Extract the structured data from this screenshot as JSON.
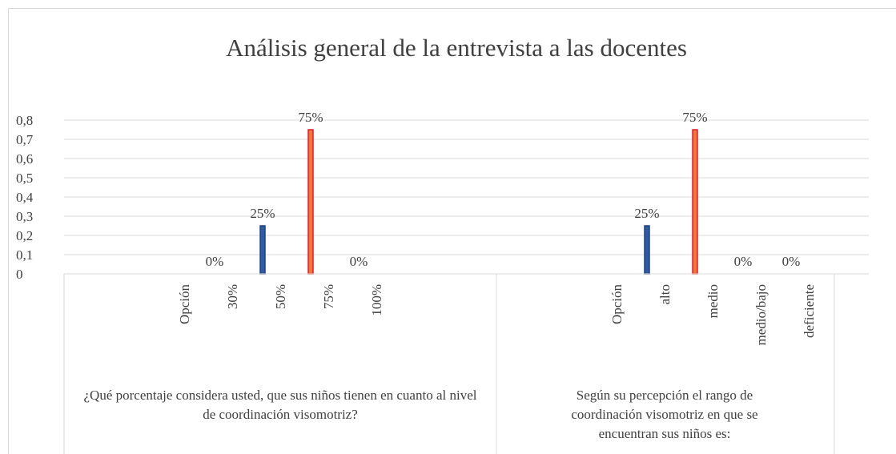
{
  "chart_data": {
    "type": "bar",
    "title": "Análisis general de la entrevista a las docentes",
    "ylim": [
      0,
      0.8
    ],
    "yticks": [
      0,
      {
        "value": 0.1,
        "label": "0,1"
      },
      {
        "value": 0.2,
        "label": "0,2"
      },
      {
        "value": 0.3,
        "label": "0,3"
      },
      {
        "value": 0.4,
        "label": "0,4"
      },
      {
        "value": 0.5,
        "label": "0,5"
      },
      {
        "value": 0.6,
        "label": "0,6"
      },
      {
        "value": 0.7,
        "label": "0,7"
      },
      {
        "value": 0.8,
        "label": "0,8"
      }
    ],
    "grid": true,
    "groups": [
      {
        "label": "¿Qué porcentaje considera usted, que sus niños tienen en cuanto al nivel de coordinación visomotriz?",
        "categories": [
          null,
          null,
          "Opción",
          "30%",
          "50%",
          "75%",
          "100%",
          null,
          null
        ],
        "values": [
          null,
          null,
          null,
          0,
          0.25,
          0.75,
          0,
          null,
          null
        ],
        "value_labels": [
          null,
          null,
          null,
          "0%",
          "25%",
          "75%",
          "0%",
          null,
          null
        ],
        "colors": [
          null,
          null,
          null,
          null,
          "#2f5aa6",
          "#f5733c",
          null,
          null,
          null
        ]
      },
      {
        "label": "Según su percepción el rango de coordinación visomotriz en que se encuentran sus niños es:",
        "categories": [
          null,
          null,
          "Opción",
          "alto",
          "medio",
          "medio/bajo",
          "deficiente"
        ],
        "values": [
          null,
          null,
          null,
          0.25,
          0.75,
          0,
          0
        ],
        "value_labels": [
          null,
          null,
          null,
          "25%",
          "75%",
          "0%",
          "0%"
        ],
        "colors": [
          null,
          null,
          null,
          "#2f5aa6",
          "#f5733c",
          null,
          null
        ]
      }
    ]
  }
}
